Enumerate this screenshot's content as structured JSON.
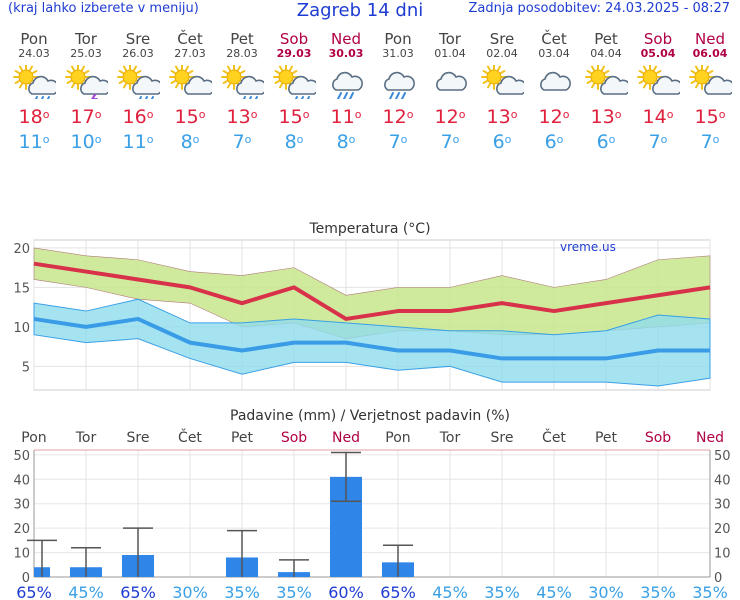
{
  "header": {
    "left_note": "(kraj lahko izberete v meniju)",
    "title": "Zagreb 14 dni",
    "updated": "Zadnja posodobitev: 24.03.2025 - 08:27"
  },
  "days": [
    {
      "name": "Pon",
      "date": "24.03",
      "icon": "sun-cloud-rain-icon",
      "max": "18",
      "min": "11",
      "weekend": false
    },
    {
      "name": "Tor",
      "date": "25.03",
      "icon": "sun-cloud-thunder-icon",
      "max": "17",
      "min": "10",
      "weekend": false
    },
    {
      "name": "Sre",
      "date": "26.03",
      "icon": "sun-cloud-rain-icon",
      "max": "16",
      "min": "11",
      "weekend": false
    },
    {
      "name": "Čet",
      "date": "27.03",
      "icon": "sun-cloud-icon",
      "max": "15",
      "min": "8",
      "weekend": false
    },
    {
      "name": "Pet",
      "date": "28.03",
      "icon": "sun-cloud-rain-icon",
      "max": "13",
      "min": "7",
      "weekend": false
    },
    {
      "name": "Sob",
      "date": "29.03",
      "icon": "sun-cloud-rain-icon",
      "max": "15",
      "min": "8",
      "weekend": true
    },
    {
      "name": "Ned",
      "date": "30.03",
      "icon": "cloud-rain-icon",
      "max": "11",
      "min": "8",
      "weekend": true
    },
    {
      "name": "Pon",
      "date": "31.03",
      "icon": "cloud-rain-icon",
      "max": "12",
      "min": "7",
      "weekend": false
    },
    {
      "name": "Tor",
      "date": "01.04",
      "icon": "cloud-icon",
      "max": "12",
      "min": "7",
      "weekend": false
    },
    {
      "name": "Sre",
      "date": "02.04",
      "icon": "sun-cloud-icon",
      "max": "13",
      "min": "6",
      "weekend": false
    },
    {
      "name": "Čet",
      "date": "03.04",
      "icon": "cloud-icon",
      "max": "12",
      "min": "6",
      "weekend": false
    },
    {
      "name": "Pet",
      "date": "04.04",
      "icon": "sun-cloud-icon",
      "max": "13",
      "min": "6",
      "weekend": false
    },
    {
      "name": "Sob",
      "date": "05.04",
      "icon": "sun-cloud-icon",
      "max": "14",
      "min": "7",
      "weekend": true
    },
    {
      "name": "Ned",
      "date": "06.04",
      "icon": "sun-cloud-icon",
      "max": "15",
      "min": "7",
      "weekend": true
    }
  ],
  "colors": {
    "max": "#e0203c",
    "min": "#3aa0e6",
    "weekend": "#b00045",
    "bar": "#2f86e8",
    "max_band": "#c8e68c",
    "min_band": "#8fdced"
  },
  "chart_data": [
    {
      "type": "line",
      "title": "Temperatura (°C)",
      "watermark": "vreme.us",
      "categories": [
        "Pon",
        "Tor",
        "Sre",
        "Čet",
        "Pet",
        "Sob",
        "Ned",
        "Pon",
        "Tor",
        "Sre",
        "Čet",
        "Pet",
        "Sob",
        "Ned"
      ],
      "yticks": [
        5,
        10,
        15,
        20
      ],
      "ylim": [
        2,
        21
      ],
      "series": [
        {
          "name": "max",
          "values": [
            18,
            17,
            16,
            15,
            13,
            15,
            11,
            12,
            12,
            13,
            12,
            13,
            14,
            15
          ],
          "band_low": [
            16,
            15,
            13.5,
            13,
            10,
            10.5,
            8.5,
            9.5,
            9.5,
            9,
            9,
            9.5,
            10,
            10.5
          ],
          "band_high": [
            20,
            19,
            18.5,
            17,
            16.5,
            17.5,
            14,
            15,
            15,
            16.5,
            15,
            16,
            18.5,
            19
          ]
        },
        {
          "name": "min",
          "values": [
            11,
            10,
            11,
            8,
            7,
            8,
            8,
            7,
            7,
            6,
            6,
            6,
            7,
            7
          ],
          "band_low": [
            9,
            8,
            8.5,
            6,
            4,
            5.5,
            5.5,
            4.5,
            5,
            3,
            3,
            3,
            2.5,
            3.5
          ],
          "band_high": [
            13,
            12,
            13.5,
            10.5,
            10.5,
            11,
            10.5,
            10,
            9.5,
            9.5,
            9,
            9.5,
            11.5,
            11
          ]
        }
      ]
    },
    {
      "type": "bar",
      "title": "Padavine (mm) / Verjetnost padavin (%)",
      "categories": [
        "Pon",
        "Tor",
        "Sre",
        "Čet",
        "Pet",
        "Sob",
        "Ned",
        "Pon",
        "Tor",
        "Sre",
        "Čet",
        "Pet",
        "Sob",
        "Ned"
      ],
      "values": [
        4,
        4,
        9,
        0,
        8,
        2,
        41,
        6,
        0,
        0,
        0,
        0,
        0,
        0
      ],
      "err_low": [
        0,
        0,
        0,
        0,
        0,
        0,
        31,
        0,
        0,
        0,
        0,
        0,
        0,
        0
      ],
      "err_high": [
        15,
        12,
        20,
        0,
        19,
        7,
        51,
        13,
        0,
        0,
        0,
        0,
        0,
        0
      ],
      "probability": [
        "65%",
        "45%",
        "65%",
        "30%",
        "35%",
        "35%",
        "60%",
        "65%",
        "45%",
        "35%",
        "45%",
        "30%",
        "35%",
        "35%"
      ],
      "yticks": [
        0,
        10,
        20,
        30,
        40,
        50
      ],
      "ylim": [
        0,
        52
      ]
    }
  ]
}
